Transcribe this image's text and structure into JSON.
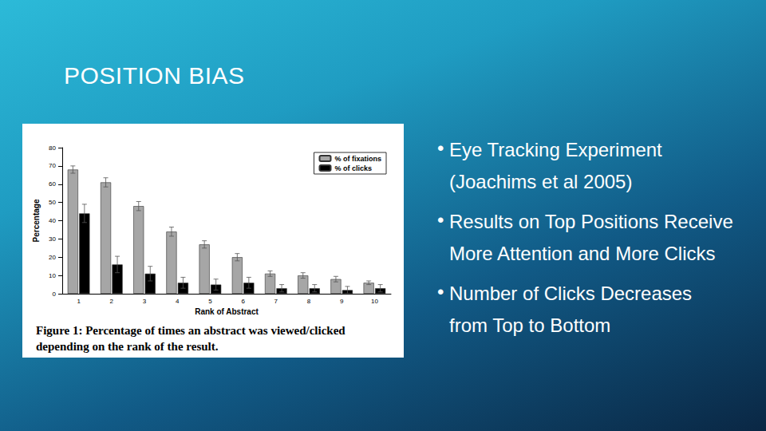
{
  "slide": {
    "title": "POSITION BIAS",
    "bullets": [
      "Eye Tracking Experiment (Joachims et al 2005)",
      "Results on Top Positions Receive More Attention and More Clicks",
      "Number of Clicks Decreases from Top to Bottom"
    ]
  },
  "chart_data": {
    "type": "bar",
    "caption": "Figure 1: Percentage of times an abstract was viewed/clicked depending on the rank of the result.",
    "x_label": "Rank of Abstract",
    "y_label": "Percentage",
    "categories": [
      "1",
      "2",
      "3",
      "4",
      "5",
      "6",
      "7",
      "8",
      "9",
      "10"
    ],
    "series": [
      {
        "name": "% of fixations",
        "color": "#a6a6a6",
        "values": [
          68,
          61,
          48,
          34,
          27,
          20,
          11,
          10,
          8,
          6
        ],
        "errors": [
          2,
          2.5,
          2.5,
          2.5,
          2,
          2,
          1.5,
          1.5,
          1.5,
          1
        ]
      },
      {
        "name": "% of clicks",
        "color": "#000000",
        "values": [
          44,
          16,
          11,
          6,
          5,
          6,
          3,
          3,
          2,
          3
        ],
        "errors": [
          5,
          4.5,
          4,
          3,
          3,
          3,
          2,
          2,
          2,
          2
        ]
      }
    ],
    "ylim": [
      0,
      80
    ],
    "yticks": [
      0,
      10,
      20,
      30,
      40,
      50,
      60,
      70,
      80
    ],
    "grid": false,
    "legend": "upper right"
  }
}
